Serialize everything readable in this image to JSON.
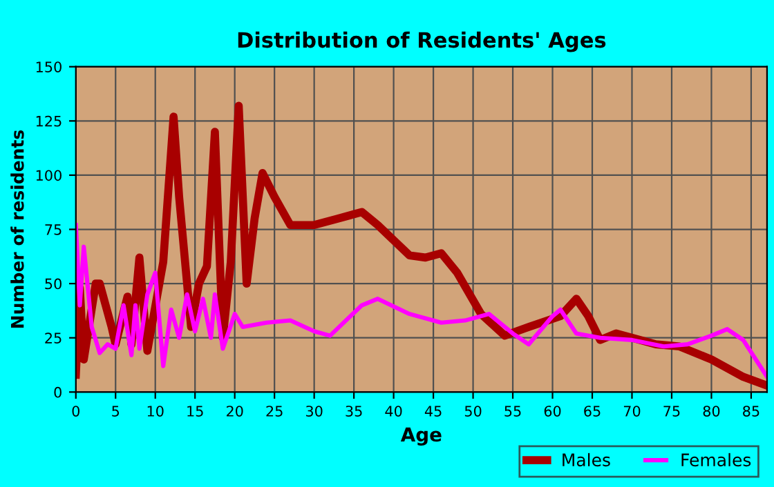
{
  "chart_data": {
    "type": "line",
    "title": "Distribution of Residents' Ages",
    "xlabel": "Age",
    "ylabel": "Number of residents",
    "xlim": [
      0,
      87
    ],
    "xticks": [
      0,
      5,
      10,
      15,
      20,
      25,
      30,
      35,
      40,
      45,
      50,
      55,
      60,
      65,
      70,
      75,
      80,
      85
    ],
    "ylim": [
      0,
      150
    ],
    "yticks": [
      0,
      25,
      50,
      75,
      100,
      125,
      150
    ],
    "grid": true,
    "legend": "bottom right",
    "marker": "none",
    "line_style": "solid",
    "series": [
      {
        "name": "Males",
        "color": "#a80000",
        "x": [
          0,
          0.5,
          1,
          2.5,
          3,
          4.5,
          5,
          6.5,
          7,
          8,
          9,
          11,
          12.3,
          13,
          14.5,
          15.5,
          16.5,
          17.5,
          18.5,
          19.5,
          20.5,
          21.5,
          22.5,
          23.5,
          25,
          27,
          30,
          33,
          36,
          38,
          42,
          44,
          46,
          48,
          51,
          54,
          57,
          61,
          63,
          64.5,
          66,
          68,
          70,
          73,
          76,
          80,
          84,
          87
        ],
        "values": [
          8,
          48,
          15,
          50,
          50,
          30,
          22,
          44,
          22,
          62,
          19,
          60,
          127,
          90,
          30,
          50,
          58,
          120,
          25,
          60,
          132,
          50,
          80,
          101,
          90,
          77,
          77,
          80,
          83,
          77,
          63,
          62,
          64,
          55,
          36,
          26,
          30,
          35,
          43,
          35,
          24,
          27,
          25,
          22,
          21,
          15,
          7,
          3
        ]
      },
      {
        "name": "Females",
        "color": "#ff00ff",
        "x": [
          0,
          0.5,
          1,
          2,
          3,
          4,
          5,
          6,
          7,
          7.5,
          8,
          9,
          10,
          11,
          12,
          13,
          14,
          15,
          16,
          17,
          17.5,
          18.5,
          20,
          21,
          24,
          27,
          30,
          32,
          36,
          38,
          42,
          46,
          49,
          52,
          55,
          57,
          60,
          61,
          63,
          66,
          70,
          74,
          77,
          80,
          82,
          84,
          87
        ],
        "values": [
          77,
          40,
          67,
          30,
          18,
          22,
          20,
          40,
          17,
          40,
          20,
          45,
          55,
          12,
          38,
          25,
          45,
          28,
          43,
          25,
          45,
          20,
          36,
          30,
          32,
          33,
          28,
          26,
          40,
          43,
          36,
          32,
          33,
          36,
          27,
          22,
          35,
          38,
          27,
          25,
          24,
          21,
          22,
          26,
          29,
          24,
          7
        ]
      }
    ]
  }
}
